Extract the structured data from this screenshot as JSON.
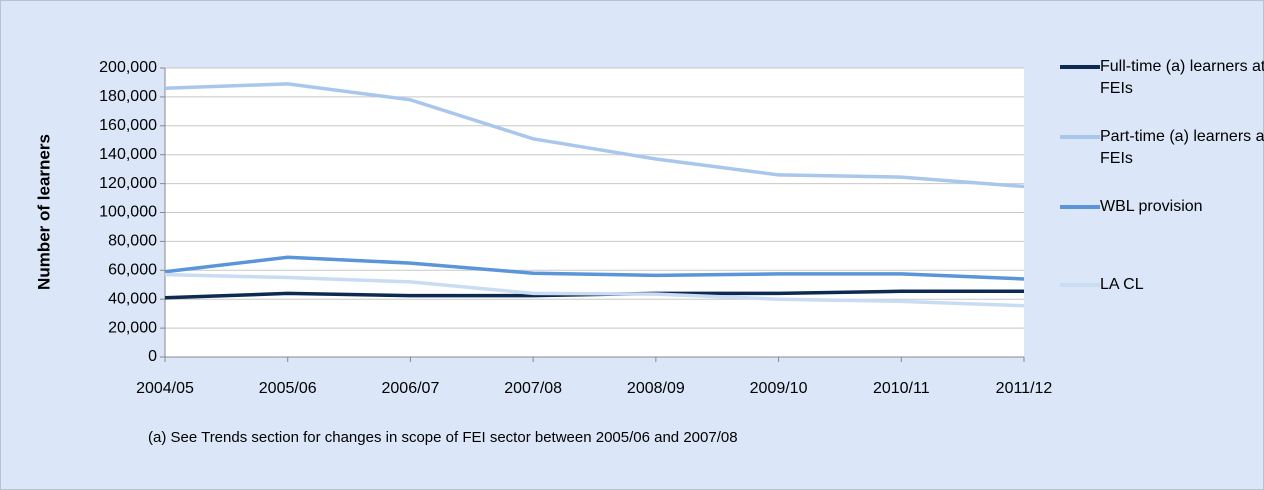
{
  "chart_data": {
    "type": "line",
    "y_label": "Number of learners",
    "note": "(a) See Trends section for changes in scope of FEI sector between 2005/06 and 2007/08",
    "categories": [
      "2004/05",
      "2005/06",
      "2006/07",
      "2007/08",
      "2008/09",
      "2009/10",
      "2010/11",
      "2011/12"
    ],
    "ylim": [
      0,
      200000
    ],
    "yticks": [
      0,
      {
        "value": 20000,
        "label": "20,000"
      },
      {
        "value": 40000,
        "label": "40,000"
      },
      {
        "value": 60000,
        "label": "60,000"
      },
      {
        "value": 80000,
        "label": "80,000"
      },
      {
        "value": 100000,
        "label": "100,000"
      },
      {
        "value": 120000,
        "label": "120,000"
      },
      {
        "value": 140000,
        "label": "140,000"
      },
      {
        "value": 160000,
        "label": "160,000"
      },
      {
        "value": 180000,
        "label": "180,000"
      },
      {
        "value": 200000,
        "label": "200,000"
      }
    ],
    "grid": true,
    "series": [
      {
        "name": "Full-time (a) learners at FEIs",
        "color": "#0d2a52",
        "values": [
          41000,
          44000,
          42500,
          42500,
          44000,
          44000,
          45500,
          45500
        ]
      },
      {
        "name": "Part-time (a) learners at FEIs",
        "color": "#a9c6ec",
        "values": [
          186000,
          189000,
          178000,
          151000,
          137000,
          126000,
          124500,
          118000
        ]
      },
      {
        "name": "WBL provision",
        "color": "#5b95d9",
        "values": [
          59000,
          69000,
          65000,
          58000,
          56500,
          57500,
          57500,
          54000
        ]
      },
      {
        "name": "LA CL",
        "color": "#c9dcf2",
        "values": [
          57000,
          55000,
          52000,
          44000,
          43500,
          40000,
          38500,
          35500
        ]
      }
    ]
  }
}
